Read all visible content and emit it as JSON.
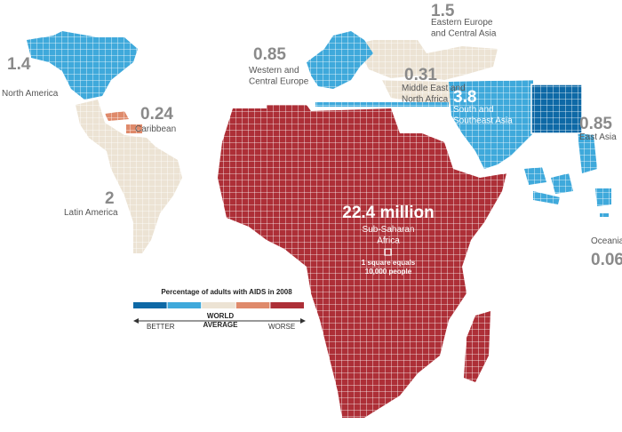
{
  "regions": [
    {
      "name": "North America",
      "value": 1.4,
      "color": "#3fa9db"
    },
    {
      "name": "Caribbean",
      "value": 0.24,
      "color": "#df8a6b"
    },
    {
      "name": "Latin America",
      "value": 2,
      "color": "#ece3d4"
    },
    {
      "name": "Western and Central Europe",
      "value": 0.85,
      "color": "#3fa9db"
    },
    {
      "name": "Eastern Europe and Central Asia",
      "value": 1.5,
      "color": "#ece3d4"
    },
    {
      "name": "Middle East and North Africa",
      "value": 0.31,
      "color": "#ece3d4"
    },
    {
      "name": "South and Southeast Asia",
      "value": 3.8,
      "color": "#3fa9db"
    },
    {
      "name": "East Asia",
      "value": 0.85,
      "color": "#0e69a6"
    },
    {
      "name": "Oceania",
      "value": 0.06,
      "color": "#3fa9db"
    },
    {
      "name": "Sub-Saharan Africa",
      "value": 22.4,
      "value_label": "22.4 million",
      "color": "#ad2f37"
    }
  ],
  "scale_note": "1 square equals 10,000 people",
  "legend": {
    "title": "Percentage of adults with AIDS in 2008",
    "colors": [
      "#0e69a6",
      "#3fa9db",
      "#ece3d4",
      "#df8a6b",
      "#ad2f37"
    ],
    "better": "BETTER",
    "average": "WORLD AVERAGE",
    "worse": "WORSE"
  }
}
